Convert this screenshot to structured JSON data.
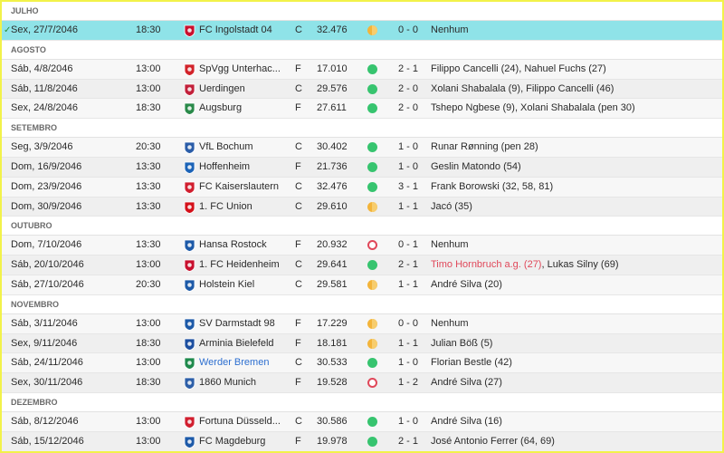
{
  "months": [
    {
      "name": "JULHO",
      "matches": [
        {
          "date": "Sex, 27/7/2046",
          "time": "18:30",
          "crest": "ingolstadt",
          "crest_color": "#c8102e",
          "opponent": "FC Ingolstadt 04",
          "venue": "C",
          "attendance": "32.476",
          "result": "d",
          "score": "0 - 0",
          "scorers": "Nenhum",
          "scorers_pre": "",
          "selected": true
        }
      ]
    },
    {
      "name": "AGOSTO",
      "matches": [
        {
          "date": "Sáb, 4/8/2046",
          "time": "13:00",
          "crest": "unterhaching",
          "crest_color": "#d2232a",
          "opponent": "SpVgg Unterhac...",
          "venue": "F",
          "attendance": "17.010",
          "result": "w",
          "score": "2 - 1",
          "scorers": "Filippo Cancelli (24), Nahuel Fuchs (27)",
          "scorers_pre": ""
        },
        {
          "date": "Sáb, 11/8/2046",
          "time": "13:00",
          "crest": "uerdingen",
          "crest_color": "#c2203a",
          "opponent": "Uerdingen",
          "venue": "C",
          "attendance": "29.576",
          "result": "w",
          "score": "2 - 0",
          "scorers": "Xolani Shabalala (9), Filippo Cancelli (46)",
          "scorers_pre": ""
        },
        {
          "date": "Sex, 24/8/2046",
          "time": "18:30",
          "crest": "augsburg",
          "crest_color": "#2a8a4a",
          "opponent": "Augsburg",
          "venue": "F",
          "attendance": "27.611",
          "result": "w",
          "score": "2 - 0",
          "scorers": "Tshepo Ngbese (9), Xolani Shabalala (pen 30)",
          "scorers_pre": ""
        }
      ]
    },
    {
      "name": "SETEMBRO",
      "matches": [
        {
          "date": "Seg, 3/9/2046",
          "time": "20:30",
          "crest": "bochum",
          "crest_color": "#2b5da8",
          "opponent": "VfL Bochum",
          "venue": "C",
          "attendance": "30.402",
          "result": "w",
          "score": "1 - 0",
          "scorers": "Runar Rønning (pen 28)",
          "scorers_pre": ""
        },
        {
          "date": "Dom, 16/9/2046",
          "time": "13:30",
          "crest": "hoffenheim",
          "crest_color": "#1c63b7",
          "opponent": "Hoffenheim",
          "venue": "F",
          "attendance": "21.736",
          "result": "w",
          "score": "1 - 0",
          "scorers": "Geslin Matondo (54)",
          "scorers_pre": ""
        },
        {
          "date": "Dom, 23/9/2046",
          "time": "13:30",
          "crest": "kaiserslautern",
          "crest_color": "#d11f2f",
          "opponent": "FC Kaiserslautern",
          "venue": "C",
          "attendance": "32.476",
          "result": "w",
          "score": "3 - 1",
          "scorers": "Frank Borowski (32, 58, 81)",
          "scorers_pre": ""
        },
        {
          "date": "Dom, 30/9/2046",
          "time": "13:30",
          "crest": "union",
          "crest_color": "#d4101a",
          "opponent": "1. FC Union",
          "venue": "C",
          "attendance": "29.610",
          "result": "d",
          "score": "1 - 1",
          "scorers": "Jacó (35)",
          "scorers_pre": ""
        }
      ]
    },
    {
      "name": "OUTUBRO",
      "matches": [
        {
          "date": "Dom, 7/10/2046",
          "time": "13:30",
          "crest": "rostock",
          "crest_color": "#1d5aa8",
          "opponent": "Hansa Rostock",
          "venue": "F",
          "attendance": "20.932",
          "result": "l",
          "score": "0 - 1",
          "scorers": "Nenhum",
          "scorers_pre": ""
        },
        {
          "date": "Sáb, 20/10/2046",
          "time": "13:00",
          "crest": "heidenheim",
          "crest_color": "#c8102e",
          "opponent": "1. FC Heidenheim",
          "venue": "C",
          "attendance": "29.641",
          "result": "w",
          "score": "2 - 1",
          "scorers": "Lukas Silny (69)",
          "scorers_pre": "Timo Hornbruch a.g. (27)"
        },
        {
          "date": "Sáb, 27/10/2046",
          "time": "20:30",
          "crest": "kiel",
          "crest_color": "#1d5aa8",
          "opponent": "Holstein Kiel",
          "venue": "C",
          "attendance": "29.581",
          "result": "d",
          "score": "1 - 1",
          "scorers": "André Silva (20)",
          "scorers_pre": ""
        }
      ]
    },
    {
      "name": "NOVEMBRO",
      "matches": [
        {
          "date": "Sáb, 3/11/2046",
          "time": "13:00",
          "crest": "darmstadt",
          "crest_color": "#1d5aa8",
          "opponent": "SV Darmstadt 98",
          "venue": "F",
          "attendance": "17.229",
          "result": "d",
          "score": "0 - 0",
          "scorers": "Nenhum",
          "scorers_pre": ""
        },
        {
          "date": "Sex, 9/11/2046",
          "time": "18:30",
          "crest": "bielefeld",
          "crest_color": "#1d4fa0",
          "opponent": "Arminia Bielefeld",
          "venue": "F",
          "attendance": "18.181",
          "result": "d",
          "score": "1 - 1",
          "scorers": "Julian Böß (5)",
          "scorers_pre": ""
        },
        {
          "date": "Sáb, 24/11/2046",
          "time": "13:00",
          "crest": "bremen",
          "crest_color": "#1f8a4c",
          "opponent": "Werder Bremen",
          "venue": "C",
          "attendance": "30.533",
          "result": "w",
          "score": "1 - 0",
          "scorers": "Florian Bestle (42)",
          "scorers_pre": "",
          "link": true
        },
        {
          "date": "Sex, 30/11/2046",
          "time": "18:30",
          "crest": "munich1860",
          "crest_color": "#2d5fa8",
          "opponent": "1860 Munich",
          "venue": "F",
          "attendance": "19.528",
          "result": "l",
          "score": "1 - 2",
          "scorers": "André Silva (27)",
          "scorers_pre": ""
        }
      ]
    },
    {
      "name": "DEZEMBRO",
      "matches": [
        {
          "date": "Sáb, 8/12/2046",
          "time": "13:00",
          "crest": "dusseldorf",
          "crest_color": "#d11f2f",
          "opponent": "Fortuna Düsseld...",
          "venue": "C",
          "attendance": "30.586",
          "result": "w",
          "score": "1 - 0",
          "scorers": "André Silva (16)",
          "scorers_pre": ""
        },
        {
          "date": "Sáb, 15/12/2046",
          "time": "13:00",
          "crest": "magdeburg",
          "crest_color": "#1d5aa8",
          "opponent": "FC Magdeburg",
          "venue": "F",
          "attendance": "19.978",
          "result": "w",
          "score": "2 - 1",
          "scorers": "José Antonio Ferrer (64, 69)",
          "scorers_pre": ""
        }
      ]
    }
  ],
  "colors": {
    "win": "#37c46f",
    "draw": "#f3b43a",
    "loss": "#e0485a",
    "selected": "#8fe3e8",
    "frame": "#f2f24a"
  }
}
